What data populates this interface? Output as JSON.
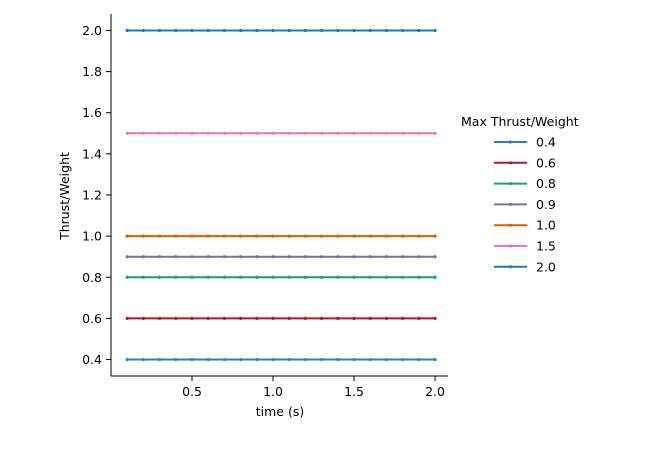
{
  "chart_data": {
    "type": "line",
    "xlabel": "time (s)",
    "ylabel": "Thrust/Weight",
    "xlim": [
      0.0,
      2.08
    ],
    "ylim": [
      0.32,
      2.08
    ],
    "xticks": [
      0.5,
      1.0,
      1.5,
      2.0
    ],
    "yticks": [
      0.4,
      0.6,
      0.8,
      1.0,
      1.2,
      1.4,
      1.6,
      1.8,
      2.0
    ],
    "grid": false,
    "legend": {
      "title": "Max Thrust/Weight",
      "placement": "right"
    },
    "x": [
      0.1,
      0.2,
      0.3,
      0.4,
      0.5,
      0.6,
      0.7,
      0.8,
      0.9,
      1.0,
      1.1,
      1.2,
      1.3,
      1.4,
      1.5,
      1.6,
      1.7,
      1.8,
      1.9,
      2.0
    ],
    "series": [
      {
        "name": "0.4",
        "color": "#2b83ba",
        "values": [
          0.4,
          0.4,
          0.4,
          0.4,
          0.4,
          0.4,
          0.4,
          0.4,
          0.4,
          0.4,
          0.4,
          0.4,
          0.4,
          0.4,
          0.4,
          0.4,
          0.4,
          0.4,
          0.4,
          0.4
        ]
      },
      {
        "name": "0.6",
        "color": "#b2182b",
        "values": [
          0.6,
          0.6,
          0.6,
          0.6,
          0.6,
          0.6,
          0.6,
          0.6,
          0.6,
          0.6,
          0.6,
          0.6,
          0.6,
          0.6,
          0.6,
          0.6,
          0.6,
          0.6,
          0.6,
          0.6
        ]
      },
      {
        "name": "0.8",
        "color": "#1b9e77",
        "values": [
          0.8,
          0.8,
          0.8,
          0.8,
          0.8,
          0.8,
          0.8,
          0.8,
          0.8,
          0.8,
          0.8,
          0.8,
          0.8,
          0.8,
          0.8,
          0.8,
          0.8,
          0.8,
          0.8,
          0.8
        ]
      },
      {
        "name": "0.9",
        "color": "#7570b3",
        "values": [
          0.9,
          0.9,
          0.9,
          0.9,
          0.9,
          0.9,
          0.9,
          0.9,
          0.9,
          0.9,
          0.9,
          0.9,
          0.9,
          0.9,
          0.9,
          0.9,
          0.9,
          0.9,
          0.9,
          0.9
        ]
      },
      {
        "name": "1.0",
        "color": "#d95f02",
        "values": [
          1.0,
          1.0,
          1.0,
          1.0,
          1.0,
          1.0,
          1.0,
          1.0,
          1.0,
          1.0,
          1.0,
          1.0,
          1.0,
          1.0,
          1.0,
          1.0,
          1.0,
          1.0,
          1.0,
          1.0
        ]
      },
      {
        "name": "1.5",
        "color": "#e377c2",
        "values": [
          1.5,
          1.5,
          1.5,
          1.5,
          1.5,
          1.5,
          1.5,
          1.5,
          1.5,
          1.5,
          1.5,
          1.5,
          1.5,
          1.5,
          1.5,
          1.5,
          1.5,
          1.5,
          1.5,
          1.5
        ]
      },
      {
        "name": "2.0",
        "color": "#1f78b4",
        "values": [
          2.0,
          2.0,
          2.0,
          2.0,
          2.0,
          2.0,
          2.0,
          2.0,
          2.0,
          2.0,
          2.0,
          2.0,
          2.0,
          2.0,
          2.0,
          2.0,
          2.0,
          2.0,
          2.0,
          2.0
        ]
      }
    ]
  }
}
